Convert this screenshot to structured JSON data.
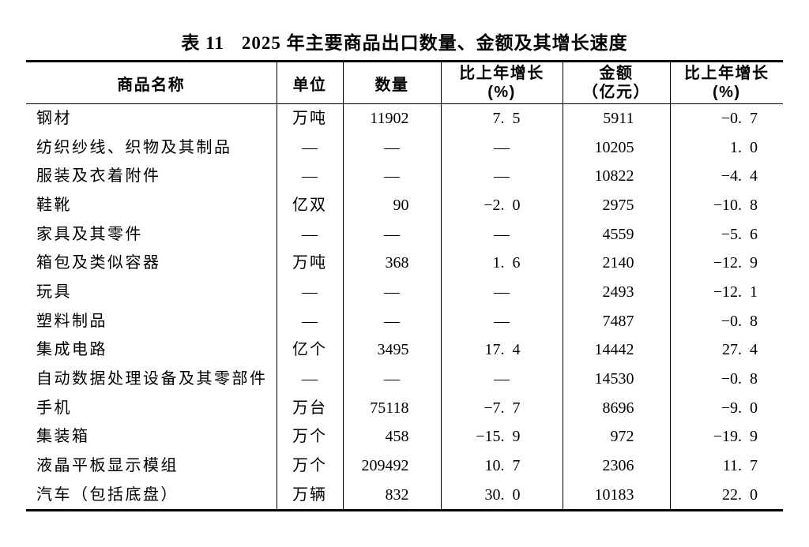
{
  "title": {
    "label": "表 11",
    "text": "2025 年主要商品出口数量、金额及其增长速度"
  },
  "table": {
    "headers": {
      "commodity": "商品名称",
      "unit": "单位",
      "quantity": "数量",
      "growth_line1": "比上年增长",
      "growth_line2": "(%)",
      "value_line1": "金额",
      "value_line2": "（亿元）"
    },
    "empty_marker": "—",
    "rows": [
      {
        "name": "钢材",
        "unit": "万吨",
        "quantity": "11902",
        "quantity_growth": "7.5",
        "value": "5911",
        "value_growth": "-0.7"
      },
      {
        "name": "纺织纱线、织物及其制品",
        "unit": "—",
        "quantity": "—",
        "quantity_growth": "—",
        "value": "10205",
        "value_growth": "1.0"
      },
      {
        "name": "服装及衣着附件",
        "unit": "—",
        "quantity": "—",
        "quantity_growth": "—",
        "value": "10822",
        "value_growth": "-4.4"
      },
      {
        "name": "鞋靴",
        "unit": "亿双",
        "quantity": "90",
        "quantity_growth": "-2.0",
        "value": "2975",
        "value_growth": "-10.8"
      },
      {
        "name": "家具及其零件",
        "unit": "—",
        "quantity": "—",
        "quantity_growth": "—",
        "value": "4559",
        "value_growth": "-5.6"
      },
      {
        "name": "箱包及类似容器",
        "unit": "万吨",
        "quantity": "368",
        "quantity_growth": "1.6",
        "value": "2140",
        "value_growth": "-12.9"
      },
      {
        "name": "玩具",
        "unit": "—",
        "quantity": "—",
        "quantity_growth": "—",
        "value": "2493",
        "value_growth": "-12.1"
      },
      {
        "name": "塑料制品",
        "unit": "—",
        "quantity": "—",
        "quantity_growth": "—",
        "value": "7487",
        "value_growth": "-0.8"
      },
      {
        "name": "集成电路",
        "unit": "亿个",
        "quantity": "3495",
        "quantity_growth": "17.4",
        "value": "14442",
        "value_growth": "27.4"
      },
      {
        "name": "自动数据处理设备及其零部件",
        "unit": "—",
        "quantity": "—",
        "quantity_growth": "—",
        "value": "14530",
        "value_growth": "-0.8"
      },
      {
        "name": "手机",
        "unit": "万台",
        "quantity": "75118",
        "quantity_growth": "-7.7",
        "value": "8696",
        "value_growth": "-9.0"
      },
      {
        "name": "集装箱",
        "unit": "万个",
        "quantity": "458",
        "quantity_growth": "-15.9",
        "value": "972",
        "value_growth": "-19.9"
      },
      {
        "name": "液晶平板显示模组",
        "unit": "万个",
        "quantity": "209492",
        "quantity_growth": "10.7",
        "value": "2306",
        "value_growth": "11.7"
      },
      {
        "name": "汽车（包括底盘）",
        "unit": "万辆",
        "quantity": "832",
        "quantity_growth": "30.0",
        "value": "10183",
        "value_growth": "22.0"
      }
    ]
  },
  "chart_data": {
    "type": "table",
    "title": "表 11 2025 年主要商品出口数量、金额及其增长速度",
    "columns": [
      "商品名称",
      "单位",
      "数量",
      "比上年增长(%)",
      "金额（亿元）",
      "比上年增长(%)"
    ],
    "rows": [
      [
        "钢材",
        "万吨",
        11902,
        7.5,
        5911,
        -0.7
      ],
      [
        "纺织纱线、织物及其制品",
        "—",
        "—",
        "—",
        10205,
        1.0
      ],
      [
        "服装及衣着附件",
        "—",
        "—",
        "—",
        10822,
        -4.4
      ],
      [
        "鞋靴",
        "亿双",
        90,
        -2.0,
        2975,
        -10.8
      ],
      [
        "家具及其零件",
        "—",
        "—",
        "—",
        4559,
        -5.6
      ],
      [
        "箱包及类似容器",
        "万吨",
        368,
        1.6,
        2140,
        -12.9
      ],
      [
        "玩具",
        "—",
        "—",
        "—",
        2493,
        -12.1
      ],
      [
        "塑料制品",
        "—",
        "—",
        "—",
        7487,
        -0.8
      ],
      [
        "集成电路",
        "亿个",
        3495,
        17.4,
        14442,
        27.4
      ],
      [
        "自动数据处理设备及其零部件",
        "—",
        "—",
        "—",
        14530,
        -0.8
      ],
      [
        "手机",
        "万台",
        75118,
        -7.7,
        8696,
        -9.0
      ],
      [
        "集装箱",
        "万个",
        458,
        -15.9,
        972,
        -19.9
      ],
      [
        "液晶平板显示模组",
        "万个",
        209492,
        10.7,
        2306,
        11.7
      ],
      [
        "汽车（包括底盘）",
        "万辆",
        832,
        30.0,
        10183,
        22.0
      ]
    ]
  },
  "colors": {
    "background": "#ffffff",
    "text": "#000000",
    "rule": "#000000"
  }
}
